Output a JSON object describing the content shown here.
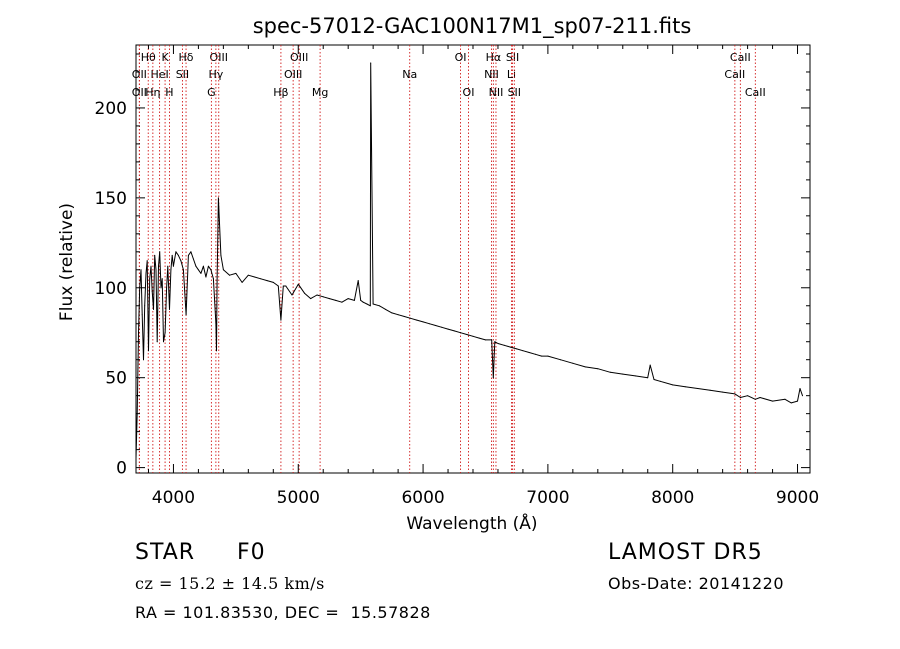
{
  "chart_data": {
    "type": "line",
    "title": "spec-57012-GAC100N17M1_sp07-211.fits",
    "xlabel": "Wavelength (Å)",
    "ylabel": "Flux (relative)",
    "xlim": [
      3700,
      9100
    ],
    "ylim": [
      -3,
      235
    ],
    "xticks": [
      4000,
      5000,
      6000,
      7000,
      8000,
      9000
    ],
    "xtick_labels": [
      "4000",
      "5000",
      "6000",
      "7000",
      "8000",
      "9000"
    ],
    "yticks": [
      0,
      50,
      100,
      150,
      200
    ],
    "ytick_labels": [
      "0",
      "50",
      "100",
      "150",
      "200"
    ],
    "grid": false,
    "line_color": "#000000",
    "marker_line_color": "#d11a1a",
    "series": [
      {
        "x": [
          3700,
          3710,
          3720,
          3730,
          3740,
          3750,
          3760,
          3770,
          3780,
          3790,
          3800,
          3810,
          3820,
          3830,
          3840,
          3850,
          3860,
          3870,
          3880,
          3890,
          3900,
          3910,
          3920,
          3933,
          3945,
          3955,
          3968,
          3980,
          3990,
          4000,
          4020,
          4040,
          4060,
          4080,
          4101,
          4120,
          4140,
          4160,
          4180,
          4200,
          4220,
          4240,
          4260,
          4280,
          4300,
          4320,
          4340,
          4345,
          4350,
          4360,
          4380,
          4400,
          4450,
          4500,
          4550,
          4600,
          4650,
          4700,
          4750,
          4800,
          4840,
          4861,
          4880,
          4900,
          4950,
          5000,
          5050,
          5100,
          5150,
          5200,
          5250,
          5300,
          5350,
          5400,
          5450,
          5480,
          5500,
          5520,
          5550,
          5577,
          5580,
          5600,
          5650,
          5700,
          5750,
          5800,
          5850,
          5900,
          5950,
          6000,
          6050,
          6100,
          6150,
          6200,
          6250,
          6300,
          6350,
          6400,
          6450,
          6500,
          6550,
          6563,
          6575,
          6600,
          6650,
          6700,
          6750,
          6800,
          6850,
          6900,
          6950,
          7000,
          7100,
          7200,
          7300,
          7400,
          7500,
          7600,
          7700,
          7800,
          7820,
          7850,
          7900,
          8000,
          8100,
          8200,
          8300,
          8400,
          8498,
          8542,
          8600,
          8662,
          8700,
          8800,
          8900,
          8950,
          9000,
          9020,
          9040
        ],
        "y": [
          5,
          30,
          75,
          100,
          110,
          85,
          60,
          90,
          108,
          115,
          65,
          105,
          112,
          98,
          88,
          118,
          110,
          70,
          112,
          120,
          100,
          105,
          70,
          75,
          100,
          112,
          88,
          110,
          118,
          112,
          120,
          118,
          115,
          110,
          85,
          118,
          120,
          116,
          112,
          110,
          108,
          112,
          106,
          112,
          110,
          105,
          80,
          65,
          104,
          150,
          118,
          110,
          107,
          108,
          103,
          107,
          106,
          105,
          104,
          103,
          101,
          82,
          101,
          101,
          96,
          102,
          97,
          94,
          96,
          95,
          94,
          93,
          92,
          94,
          93,
          104,
          93,
          92,
          91,
          90,
          225,
          91,
          90,
          88,
          86,
          85,
          84,
          83,
          82,
          81,
          80,
          79,
          78,
          77,
          76,
          75,
          74,
          73,
          72,
          71,
          71,
          50,
          70,
          69,
          68,
          67,
          66,
          65,
          64,
          63,
          62,
          62,
          60,
          58,
          56,
          55,
          53,
          52,
          51,
          50,
          57,
          49,
          48,
          46,
          45,
          44,
          43,
          42,
          41,
          39,
          40,
          38,
          39,
          37,
          38,
          36,
          37,
          44,
          40
        ]
      }
    ],
    "line_markers": [
      {
        "label": "Hθ",
        "wave": 3798,
        "row": 0
      },
      {
        "label": "OII",
        "wave": 3727,
        "row": 1
      },
      {
        "label": "OII",
        "wave": 3727,
        "row": 2
      },
      {
        "label": "K",
        "wave": 3933,
        "row": 0
      },
      {
        "label": "HeI",
        "wave": 3889,
        "row": 1
      },
      {
        "label": "Hη",
        "wave": 3835,
        "row": 2
      },
      {
        "label": "Hδ",
        "wave": 4101,
        "row": 0
      },
      {
        "label": "SII",
        "wave": 4072,
        "row": 1
      },
      {
        "label": "H",
        "wave": 3968,
        "row": 2
      },
      {
        "label": "OIII",
        "wave": 4363,
        "row": 0
      },
      {
        "label": "Hγ",
        "wave": 4340,
        "row": 1
      },
      {
        "label": "G",
        "wave": 4304,
        "row": 2
      },
      {
        "label": "OIII",
        "wave": 5007,
        "row": 0
      },
      {
        "label": "OIII",
        "wave": 4959,
        "row": 1
      },
      {
        "label": "Hβ",
        "wave": 4861,
        "row": 2
      },
      {
        "label": "Mg",
        "wave": 5175,
        "row": 2
      },
      {
        "label": "Na",
        "wave": 5893,
        "row": 1
      },
      {
        "label": "OI",
        "wave": 6300,
        "row": 0
      },
      {
        "label": "OI",
        "wave": 6364,
        "row": 2
      },
      {
        "label": "Hα",
        "wave": 6563,
        "row": 0
      },
      {
        "label": "SII",
        "wave": 6717,
        "row": 0
      },
      {
        "label": "NII",
        "wave": 6548,
        "row": 1
      },
      {
        "label": "Li",
        "wave": 6708,
        "row": 1
      },
      {
        "label": "NII",
        "wave": 6584,
        "row": 2
      },
      {
        "label": "SII",
        "wave": 6731,
        "row": 2
      },
      {
        "label": "CaII",
        "wave": 8542,
        "row": 0
      },
      {
        "label": "CaII",
        "wave": 8498,
        "row": 1
      },
      {
        "label": "CaII",
        "wave": 8662,
        "row": 2
      }
    ]
  },
  "info": {
    "class": "STAR",
    "subclass": "F0",
    "survey": "LAMOST DR5",
    "cz": "cz = 15.2 ± 14.5 km/s",
    "obs_date": "Obs-Date: 20141220",
    "coords": "RA = 101.83530, DEC =  15.57828"
  }
}
